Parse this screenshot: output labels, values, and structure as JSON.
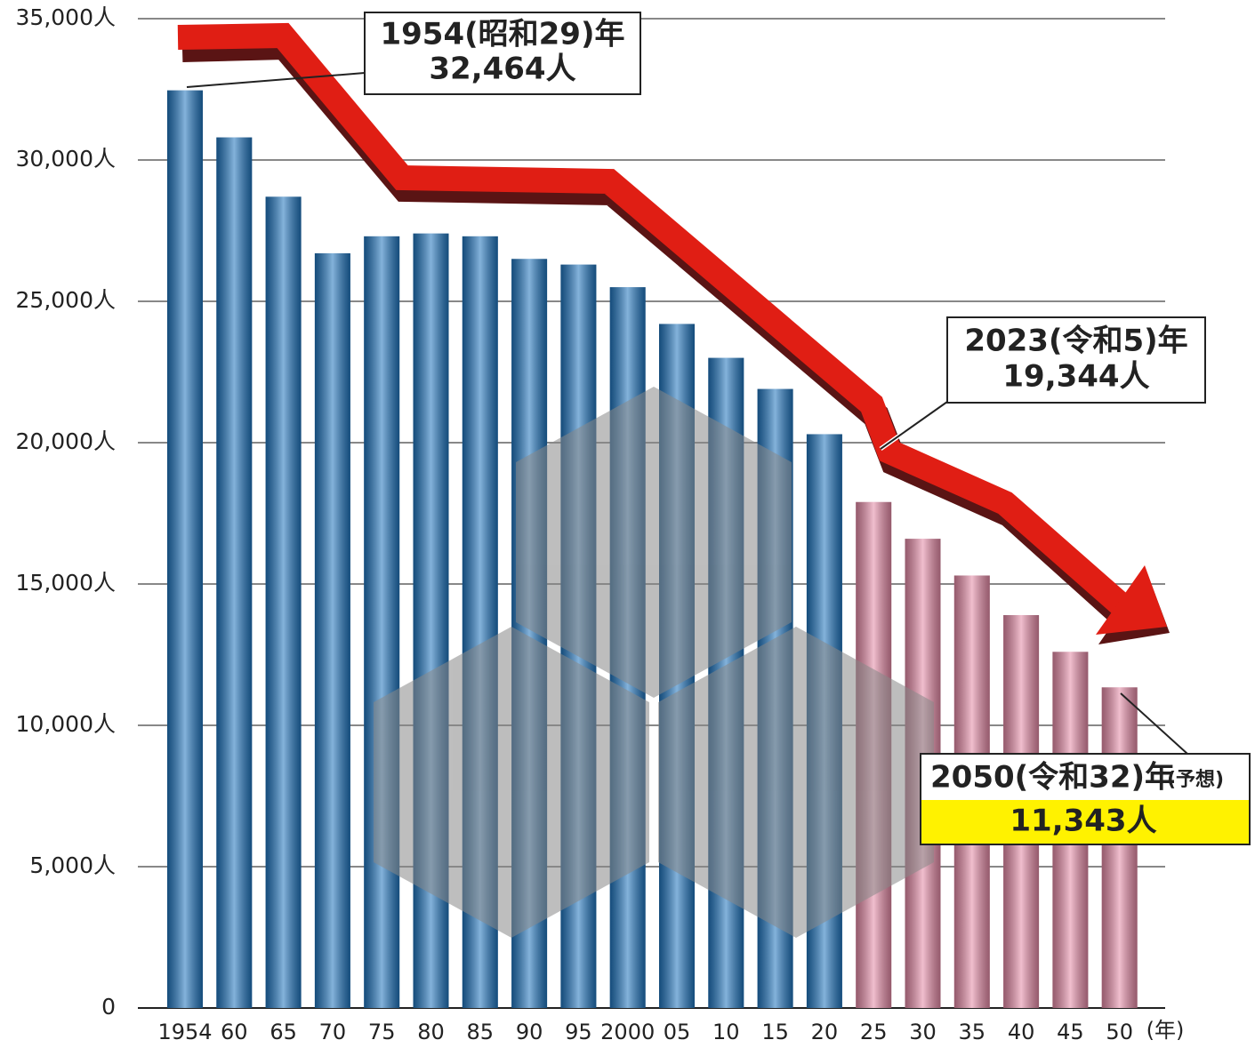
{
  "chart_data": {
    "type": "bar",
    "categories": [
      "1954",
      "60",
      "65",
      "70",
      "75",
      "80",
      "85",
      "90",
      "95",
      "2000",
      "05",
      "10",
      "15",
      "20",
      "25",
      "30",
      "35",
      "40",
      "45",
      "50"
    ],
    "values": [
      32464,
      30800,
      28700,
      26700,
      27300,
      27400,
      27300,
      26500,
      26300,
      25500,
      24200,
      23000,
      21900,
      20300,
      17900,
      16600,
      15300,
      13900,
      12600,
      11343
    ],
    "colors": [
      "#1f74bd",
      "#1f74bd",
      "#1f74bd",
      "#1f74bd",
      "#1f74bd",
      "#1f74bd",
      "#1f74bd",
      "#1f74bd",
      "#1f74bd",
      "#1f74bd",
      "#1f74bd",
      "#1f74bd",
      "#1f74bd",
      "#1f74bd",
      "#e58aa6",
      "#e58aa6",
      "#e58aa6",
      "#e58aa6",
      "#e58aa6",
      "#e58aa6"
    ],
    "x_label": "(年)",
    "ylim": [
      0,
      35000
    ],
    "yticks": [
      0,
      {
        "value": 5000,
        "label": "5,000人"
      },
      {
        "value": 10000,
        "label": "10,000人"
      },
      {
        "value": 15000,
        "label": "15,000人"
      },
      {
        "value": 20000,
        "label": "20,000人"
      },
      {
        "value": 25000,
        "label": "25,000人"
      },
      {
        "value": 30000,
        "label": "30,000人"
      },
      {
        "value": 35000,
        "label": "35,000人"
      }
    ],
    "grid": true,
    "annotations": [
      {
        "lines": [
          "1954(昭和29)年",
          "32,464人"
        ]
      },
      {
        "lines": [
          "2023(令和5)年",
          "19,344人"
        ]
      },
      {
        "lines": [
          "2050(令和32)年",
          "11,343人"
        ],
        "note": "(予想)"
      }
    ]
  }
}
